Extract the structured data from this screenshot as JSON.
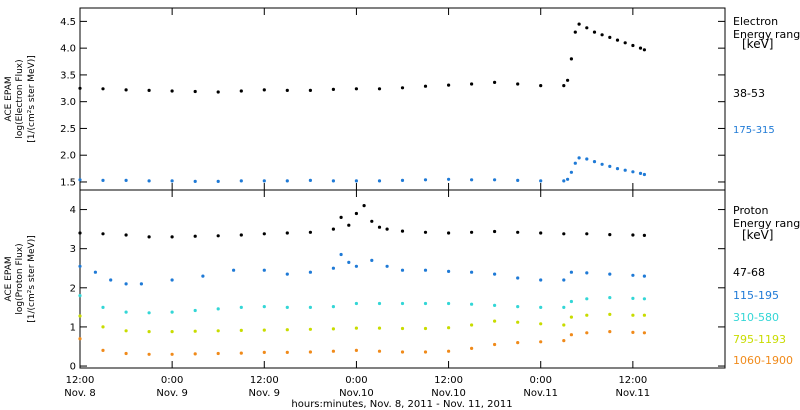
{
  "chart_data": [
    {
      "type": "scatter",
      "panel": "electron",
      "ylabel": [
        "ACE EPAM",
        "log(Electron Flux)",
        "[1/(cm²s ster MeV)]"
      ],
      "ylim": [
        1.35,
        4.75
      ],
      "yticks": [
        1.5,
        2.0,
        2.5,
        3.0,
        3.5,
        4.0,
        4.5
      ],
      "ytick_labels": [
        "1.5",
        "2.0",
        "2.5",
        "3.0",
        "3.5",
        "4.0",
        "4.5"
      ],
      "legend_title": [
        "Electron",
        "Energy ranges",
        "[keV]"
      ],
      "series": [
        {
          "name": "38-53",
          "color": "#000000",
          "x": [
            0,
            3,
            6,
            9,
            12,
            15,
            18,
            21,
            24,
            27,
            30,
            33,
            36,
            39,
            42,
            45,
            48,
            51,
            54,
            57,
            60,
            63,
            63.5,
            64,
            64.5,
            65,
            66,
            67,
            68,
            69,
            70,
            71,
            72,
            73,
            73.5
          ],
          "y": [
            3.25,
            3.24,
            3.22,
            3.21,
            3.2,
            3.19,
            3.18,
            3.2,
            3.22,
            3.21,
            3.21,
            3.23,
            3.24,
            3.24,
            3.26,
            3.29,
            3.31,
            3.33,
            3.36,
            3.33,
            3.3,
            3.3,
            3.4,
            3.8,
            4.3,
            4.45,
            4.38,
            4.3,
            4.25,
            4.2,
            4.15,
            4.1,
            4.05,
            4.0,
            3.97
          ]
        },
        {
          "name": "175-315",
          "color": "#1f7ad6",
          "x": [
            0,
            3,
            6,
            9,
            12,
            15,
            18,
            21,
            24,
            27,
            30,
            33,
            36,
            39,
            42,
            45,
            48,
            51,
            54,
            57,
            60,
            63,
            63.5,
            64,
            64.5,
            65,
            66,
            67,
            68,
            69,
            70,
            71,
            72,
            73,
            73.5
          ],
          "y": [
            1.54,
            1.53,
            1.53,
            1.52,
            1.52,
            1.51,
            1.51,
            1.52,
            1.52,
            1.52,
            1.53,
            1.52,
            1.52,
            1.52,
            1.53,
            1.54,
            1.55,
            1.54,
            1.54,
            1.53,
            1.52,
            1.52,
            1.55,
            1.68,
            1.85,
            1.95,
            1.93,
            1.88,
            1.83,
            1.79,
            1.75,
            1.72,
            1.69,
            1.66,
            1.64
          ]
        }
      ]
    },
    {
      "type": "scatter",
      "panel": "proton",
      "ylabel": [
        "ACE EPAM",
        "log(Proton Flux)",
        "[1/(cm²s ster MeV)]"
      ],
      "xlabel": "hours:minutes, Nov. 8, 2011 - Nov. 11, 2011",
      "ylim": [
        -0.05,
        4.5
      ],
      "yticks": [
        0,
        1,
        2,
        3,
        4
      ],
      "ytick_labels": [
        "0",
        "1",
        "2",
        "3",
        "4"
      ],
      "xlim": [
        0,
        84
      ],
      "xticks": [
        0,
        12,
        24,
        36,
        48,
        60,
        72,
        84
      ],
      "xtick_labels": [
        "12:00",
        "0:00",
        "12:00",
        "0:00",
        "12:00",
        "0:00",
        "12:00",
        ""
      ],
      "xtick_sublabels": [
        "Nov. 8",
        "Nov. 9",
        "Nov. 9",
        "Nov.10",
        "Nov.10",
        "Nov.11",
        "Nov.11",
        ""
      ],
      "legend_title": [
        "Proton",
        "Energy ranges",
        "[keV]"
      ],
      "series": [
        {
          "name": "47-68",
          "color": "#000000",
          "x": [
            0,
            3,
            6,
            9,
            12,
            15,
            18,
            21,
            24,
            27,
            30,
            33,
            34,
            35,
            36,
            37,
            38,
            39,
            40,
            42,
            45,
            48,
            51,
            54,
            57,
            60,
            63,
            66,
            69,
            72,
            73.5
          ],
          "y": [
            3.4,
            3.38,
            3.35,
            3.3,
            3.3,
            3.32,
            3.33,
            3.35,
            3.38,
            3.4,
            3.42,
            3.5,
            3.8,
            3.6,
            3.9,
            4.1,
            3.7,
            3.55,
            3.5,
            3.45,
            3.42,
            3.4,
            3.42,
            3.44,
            3.42,
            3.4,
            3.38,
            3.38,
            3.36,
            3.35,
            3.34
          ]
        },
        {
          "name": "115-195",
          "color": "#1f7ad6",
          "x": [
            0,
            2,
            4,
            6,
            8,
            12,
            16,
            20,
            24,
            27,
            30,
            33,
            34,
            35,
            36,
            38,
            40,
            42,
            45,
            48,
            51,
            54,
            57,
            60,
            63,
            64,
            66,
            69,
            72,
            73.5
          ],
          "y": [
            2.55,
            2.4,
            2.2,
            2.1,
            2.1,
            2.2,
            2.3,
            2.45,
            2.45,
            2.35,
            2.4,
            2.5,
            2.85,
            2.65,
            2.55,
            2.7,
            2.55,
            2.45,
            2.45,
            2.42,
            2.4,
            2.35,
            2.25,
            2.2,
            2.2,
            2.4,
            2.38,
            2.35,
            2.32,
            2.3
          ]
        },
        {
          "name": "310-580",
          "color": "#33d6d6",
          "x": [
            0,
            3,
            6,
            9,
            12,
            15,
            18,
            21,
            24,
            27,
            30,
            33,
            36,
            39,
            42,
            45,
            48,
            51,
            54,
            57,
            60,
            63,
            64,
            66,
            69,
            72,
            73.5
          ],
          "y": [
            1.8,
            1.5,
            1.38,
            1.36,
            1.38,
            1.42,
            1.46,
            1.5,
            1.52,
            1.5,
            1.5,
            1.52,
            1.6,
            1.6,
            1.6,
            1.6,
            1.6,
            1.58,
            1.55,
            1.52,
            1.5,
            1.5,
            1.65,
            1.72,
            1.75,
            1.73,
            1.72
          ]
        },
        {
          "name": "795-1193",
          "color": "#c8dc00",
          "x": [
            0,
            3,
            6,
            9,
            12,
            15,
            18,
            21,
            24,
            27,
            30,
            33,
            36,
            39,
            42,
            45,
            48,
            51,
            54,
            57,
            60,
            63,
            64,
            66,
            69,
            72,
            73.5
          ],
          "y": [
            1.28,
            1.0,
            0.9,
            0.88,
            0.88,
            0.89,
            0.9,
            0.91,
            0.92,
            0.93,
            0.94,
            0.95,
            0.97,
            0.97,
            0.96,
            0.96,
            0.98,
            1.05,
            1.15,
            1.12,
            1.08,
            1.05,
            1.25,
            1.3,
            1.32,
            1.3,
            1.3
          ]
        },
        {
          "name": "1060-1900",
          "color": "#f08a1a",
          "x": [
            0,
            3,
            6,
            9,
            12,
            15,
            18,
            21,
            24,
            27,
            30,
            33,
            36,
            39,
            42,
            45,
            48,
            51,
            54,
            57,
            60,
            63,
            64,
            66,
            69,
            72,
            73.5
          ],
          "y": [
            0.7,
            0.4,
            0.32,
            0.3,
            0.3,
            0.31,
            0.32,
            0.33,
            0.35,
            0.35,
            0.36,
            0.38,
            0.4,
            0.38,
            0.36,
            0.36,
            0.38,
            0.45,
            0.55,
            0.6,
            0.62,
            0.65,
            0.8,
            0.85,
            0.88,
            0.86,
            0.85
          ]
        }
      ]
    }
  ]
}
